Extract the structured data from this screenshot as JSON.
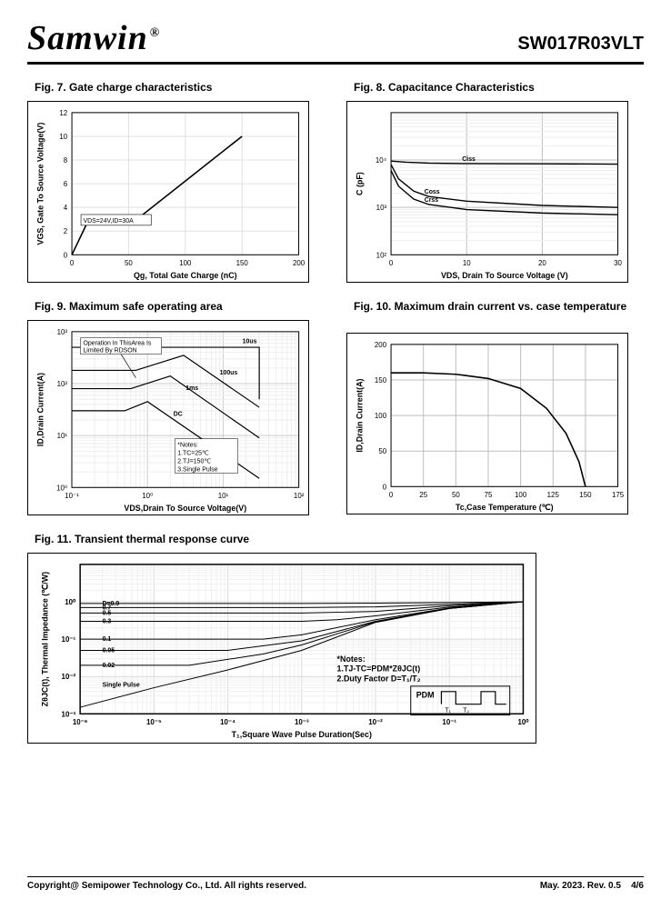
{
  "header": {
    "brand": "Samwin",
    "reg": "®",
    "part": "SW017R03VLT"
  },
  "fig7": {
    "title": "Fig. 7. Gate charge characteristics",
    "type": "line",
    "xlabel": "Qg, Total Gate Charge (nC)",
    "ylabel": "VGS, Gate To  Source Voltage(V)",
    "xlim": [
      0,
      200
    ],
    "ylim": [
      0,
      12
    ],
    "xticks": [
      0,
      50,
      100,
      150,
      200
    ],
    "yticks": [
      0,
      2,
      4,
      6,
      8,
      10,
      12
    ],
    "line_color": "#000000",
    "line_width": 1.6,
    "grid_color": "#e0e0e0",
    "background_color": "#ffffff",
    "annotation": "VDS=24V,ID=30A",
    "points": [
      [
        0,
        0
      ],
      [
        14,
        2.8
      ],
      [
        60,
        3.2
      ],
      [
        150,
        10
      ]
    ]
  },
  "fig8": {
    "title": "Fig. 8. Capacitance Characteristics",
    "type": "line",
    "xlabel": "VDS, Drain To Source Voltage (V)",
    "ylabel": "C (pF)",
    "xlim": [
      0,
      30
    ],
    "ylim_log": [
      100,
      100000
    ],
    "xticks": [
      0,
      10,
      20,
      30
    ],
    "ytick_labels": [
      "10²",
      "10³",
      "10⁴"
    ],
    "line_color": "#000000",
    "line_width": 1.4,
    "grid_color": "#bdbdbd",
    "background_color": "#ffffff",
    "series": [
      {
        "label": "Ciss",
        "points": [
          [
            0,
            9500
          ],
          [
            2,
            9000
          ],
          [
            5,
            8600
          ],
          [
            10,
            8400
          ],
          [
            20,
            8300
          ],
          [
            30,
            8200
          ]
        ]
      },
      {
        "label": "Coss",
        "points": [
          [
            0,
            8000
          ],
          [
            1,
            4000
          ],
          [
            3,
            2200
          ],
          [
            5,
            1700
          ],
          [
            10,
            1350
          ],
          [
            20,
            1100
          ],
          [
            30,
            1000
          ]
        ]
      },
      {
        "label": "Crss",
        "points": [
          [
            0,
            6000
          ],
          [
            1,
            2800
          ],
          [
            3,
            1500
          ],
          [
            5,
            1150
          ],
          [
            10,
            900
          ],
          [
            20,
            760
          ],
          [
            30,
            700
          ]
        ]
      }
    ]
  },
  "fig9": {
    "title": "Fig. 9. Maximum safe operating area",
    "type": "loglog",
    "xlabel": "VDS,Drain To Source Voltage(V)",
    "ylabel": "ID,Drain Current(A)",
    "xlim_log": [
      0.1,
      100
    ],
    "ylim_log": [
      1,
      1000
    ],
    "xtick_labels": [
      "10⁻¹",
      "10⁰",
      "10¹",
      "10²"
    ],
    "ytick_labels": [
      "10⁰",
      "10¹",
      "10²",
      "10³"
    ],
    "line_color": "#000000",
    "line_width": 1.2,
    "grid_color": "#cccccc",
    "background_color": "#ffffff",
    "annotation1": "Operation In ThisArea Is\nLimited By RDSON",
    "notes": "*Notes:\n1.TC=25℃\n2.TJ=150℃\n3.Single Pulse",
    "series": [
      {
        "label": "10us",
        "points": [
          [
            0.1,
            500
          ],
          [
            1,
            500
          ],
          [
            2.3,
            500
          ],
          [
            30,
            500
          ],
          [
            30,
            50
          ]
        ]
      },
      {
        "label": "100us",
        "points": [
          [
            0.1,
            180
          ],
          [
            0.7,
            180
          ],
          [
            3,
            350
          ],
          [
            30,
            35
          ]
        ]
      },
      {
        "label": "1ms",
        "points": [
          [
            0.1,
            80
          ],
          [
            0.6,
            80
          ],
          [
            2,
            140
          ],
          [
            30,
            9
          ]
        ]
      },
      {
        "label": "DC",
        "points": [
          [
            0.1,
            30
          ],
          [
            0.5,
            30
          ],
          [
            1,
            45
          ],
          [
            30,
            1.5
          ]
        ]
      }
    ]
  },
  "fig10": {
    "title": "Fig. 10. Maximum drain current vs. case temperature",
    "type": "line",
    "xlabel": "Tc,Case Temperature (℃)",
    "ylabel": "ID,Drain Current(A)",
    "xlim": [
      0,
      175
    ],
    "ylim": [
      0,
      200
    ],
    "xticks": [
      0,
      25,
      50,
      75,
      100,
      125,
      150,
      175
    ],
    "yticks": [
      0,
      50,
      100,
      150,
      200
    ],
    "line_color": "#000000",
    "line_width": 1.6,
    "grid_color": "#bdbdbd",
    "background_color": "#ffffff",
    "points": [
      [
        0,
        160
      ],
      [
        25,
        160
      ],
      [
        50,
        158
      ],
      [
        75,
        152
      ],
      [
        100,
        138
      ],
      [
        120,
        110
      ],
      [
        135,
        75
      ],
      [
        145,
        35
      ],
      [
        150,
        0
      ]
    ]
  },
  "fig11": {
    "title": "Fig. 11. Transient thermal response curve",
    "type": "loglog",
    "xlabel": "T₁,Square Wave Pulse Duration(Sec)",
    "ylabel": "ZθJC(t), Thermal  Impedance (℃/W)",
    "xlim_log": [
      1e-06,
      1
    ],
    "ylim_log": [
      0.001,
      10
    ],
    "xtick_labels": [
      "10⁻⁶",
      "10⁻⁵",
      "10⁻⁴",
      "10⁻³",
      "10⁻²",
      "10⁻¹",
      "10⁰"
    ],
    "ytick_labels": [
      "10⁻³",
      "10⁻²",
      "10⁻¹",
      "10⁰"
    ],
    "line_color": "#000000",
    "line_width": 1.0,
    "grid_color": "#d9d9d9",
    "background_color": "#ffffff",
    "d_labels": [
      "D=0.9",
      "0.7",
      "0.5",
      "0.3",
      "0.1",
      "0.05",
      "0.02",
      "Single Pulse"
    ],
    "notes": "*Notes:\n1.TJ-TC=PDM*ZθJC(t)\n2.Duty Factor D=T₁/T₂",
    "pdm_label": "PDM",
    "series": [
      {
        "points": [
          [
            1e-06,
            0.9
          ],
          [
            0.001,
            0.9
          ],
          [
            0.01,
            0.92
          ],
          [
            0.1,
            0.95
          ],
          [
            1,
            1
          ]
        ]
      },
      {
        "points": [
          [
            1e-06,
            0.7
          ],
          [
            0.001,
            0.7
          ],
          [
            0.01,
            0.73
          ],
          [
            0.1,
            0.85
          ],
          [
            1,
            1
          ]
        ]
      },
      {
        "points": [
          [
            1e-06,
            0.5
          ],
          [
            0.001,
            0.5
          ],
          [
            0.01,
            0.55
          ],
          [
            0.1,
            0.78
          ],
          [
            1,
            1
          ]
        ]
      },
      {
        "points": [
          [
            1e-06,
            0.3
          ],
          [
            0.001,
            0.3
          ],
          [
            0.003,
            0.33
          ],
          [
            0.01,
            0.42
          ],
          [
            0.1,
            0.72
          ],
          [
            1,
            1
          ]
        ]
      },
      {
        "points": [
          [
            1e-06,
            0.1
          ],
          [
            0.0003,
            0.1
          ],
          [
            0.001,
            0.13
          ],
          [
            0.01,
            0.33
          ],
          [
            0.1,
            0.68
          ],
          [
            1,
            1
          ]
        ]
      },
      {
        "points": [
          [
            1e-06,
            0.05
          ],
          [
            0.0001,
            0.05
          ],
          [
            0.001,
            0.09
          ],
          [
            0.01,
            0.3
          ],
          [
            0.1,
            0.66
          ],
          [
            1,
            1
          ]
        ]
      },
      {
        "points": [
          [
            1e-06,
            0.02
          ],
          [
            3e-05,
            0.02
          ],
          [
            0.0003,
            0.04
          ],
          [
            0.001,
            0.07
          ],
          [
            0.01,
            0.29
          ],
          [
            0.1,
            0.66
          ],
          [
            1,
            1
          ]
        ]
      },
      {
        "points": [
          [
            1e-06,
            0.0015
          ],
          [
            1e-05,
            0.005
          ],
          [
            0.0001,
            0.015
          ],
          [
            0.001,
            0.05
          ],
          [
            0.01,
            0.28
          ],
          [
            0.1,
            0.66
          ],
          [
            1,
            1
          ]
        ]
      }
    ]
  },
  "footer": {
    "copyright": "Copyright@ Semipower Technology Co., Ltd. All rights reserved.",
    "rev": "May. 2023. Rev. 0.5",
    "page": "4/6"
  }
}
